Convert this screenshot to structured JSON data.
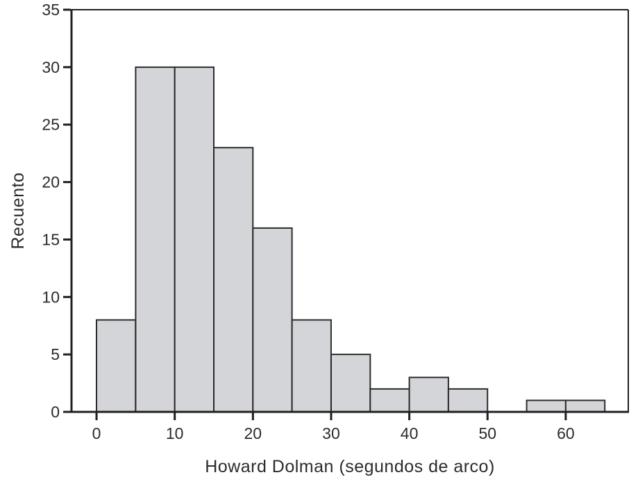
{
  "chart_data": {
    "type": "bar",
    "subtype": "histogram",
    "title": "",
    "xlabel": "Howard Dolman (segundos de arco)",
    "ylabel": "Recuento",
    "bin_edges": [
      0,
      5,
      10,
      15,
      20,
      25,
      30,
      35,
      40,
      45,
      50,
      55,
      60,
      65
    ],
    "counts": [
      8,
      30,
      30,
      23,
      16,
      8,
      5,
      2,
      3,
      2,
      0,
      1,
      1
    ],
    "x_ticks": [
      0,
      10,
      20,
      30,
      40,
      50,
      60
    ],
    "y_ticks": [
      0,
      5,
      10,
      15,
      20,
      25,
      30,
      35
    ],
    "xlim": [
      -3.2,
      68.0
    ],
    "ylim": [
      0,
      35
    ],
    "grid": false,
    "legend": "none",
    "colors": {
      "bar_fill": "#d4d5d8",
      "bar_stroke": "#2b2b2b",
      "axis": "#1f1f1f",
      "tick_text": "#2b2b2b",
      "background": "#ffffff"
    }
  }
}
